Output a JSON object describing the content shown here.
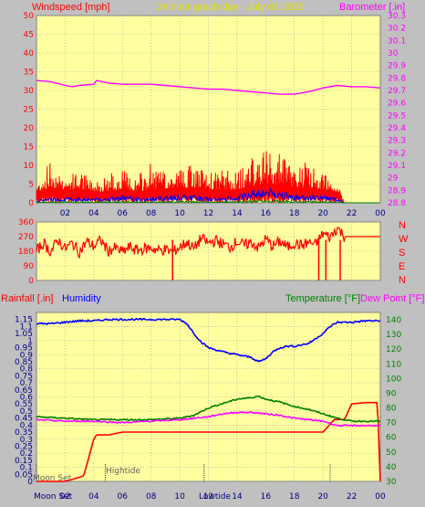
{
  "colors": {
    "background": "#c0c0c0",
    "plot_bg": "#ffffa0",
    "grid": "#a0a0a0",
    "wind": "#ff0000",
    "gust_low": "#0000ff",
    "calm": "#008000",
    "barometer": "#ff00ff",
    "direction": "#ff0000",
    "rainfall": "#ff0000",
    "humidity": "#0000ff",
    "temperature": "#008000",
    "dewpoint": "#ff00ff"
  },
  "header": {
    "wind_label": "Windspeed [mph]",
    "title": "24 hour graph day - July 01 2025",
    "baro_label": "Barometer [.in]"
  },
  "panel_bottom": {
    "rain_label": "Rainfall [.in]",
    "humidity_label": "Humidity",
    "temp_label": "Temperature [°F]",
    "dew_label": "Dew Point [°F]"
  },
  "direction_letters": [
    "N",
    "W",
    "S",
    "E",
    "N"
  ],
  "x_ticks": [
    "02",
    "04",
    "06",
    "08",
    "10",
    "12",
    "14",
    "16",
    "18",
    "20",
    "22",
    "00"
  ],
  "events": {
    "moon_set": "Moon Set",
    "high_tide": "Hightide",
    "low_tide": "Lowtide"
  },
  "chart_data": [
    {
      "type": "line",
      "name": "wind",
      "xlabel": "",
      "ylabel": "Windspeed [mph]",
      "ylim": [
        0,
        50
      ],
      "y_ticks": [
        0,
        5,
        10,
        15,
        20,
        25,
        30,
        35,
        40,
        45,
        50
      ],
      "y2label": "Barometer [.in]",
      "y2lim": [
        28.8,
        30.3
      ],
      "y2_ticks": [
        "28.8",
        "28.9",
        "29",
        "29.1",
        "29.2",
        "29.3",
        "29.4",
        "29.5",
        "29.6",
        "29.7",
        "29.8",
        "29.9",
        "30",
        "30.1",
        "30.2",
        "30.3"
      ],
      "x_hours": [
        0,
        24
      ],
      "barometer": {
        "x": [
          0,
          1,
          2,
          2.5,
          3,
          4,
          4.2,
          5,
          6,
          7,
          8,
          9,
          10,
          11,
          12,
          13,
          14,
          15,
          16,
          17,
          18,
          19,
          20,
          21,
          22,
          23,
          24
        ],
        "values": [
          29.78,
          29.77,
          29.74,
          29.73,
          29.74,
          29.75,
          29.78,
          29.76,
          29.75,
          29.75,
          29.75,
          29.74,
          29.73,
          29.72,
          29.71,
          29.71,
          29.7,
          29.69,
          29.68,
          29.67,
          29.67,
          29.69,
          29.72,
          29.74,
          29.73,
          29.73,
          29.72
        ]
      },
      "wind_envelope": {
        "x": [
          0,
          1,
          2,
          3,
          4,
          5,
          6,
          7,
          8,
          9,
          10,
          11,
          12,
          13,
          14,
          15,
          16,
          17,
          18,
          19,
          20,
          21,
          21.5,
          22,
          23,
          24
        ],
        "gust_max": [
          5,
          12,
          7,
          9,
          6,
          8,
          9,
          7,
          11,
          8,
          10,
          10,
          8,
          9,
          8,
          12,
          14,
          13,
          10,
          11,
          8,
          6,
          0,
          0,
          0,
          0
        ],
        "average": [
          3,
          4,
          3.5,
          3.5,
          3,
          3,
          3.5,
          3,
          3.5,
          3.5,
          4,
          4,
          3.5,
          3.5,
          3.5,
          4.5,
          5,
          5,
          4,
          4,
          3.5,
          3,
          0,
          0,
          0,
          0
        ],
        "low": [
          0.5,
          1,
          1,
          1,
          1,
          1,
          1.5,
          1,
          1,
          1.5,
          1.5,
          1.5,
          1,
          1,
          1.5,
          2.5,
          3,
          2.5,
          1.5,
          1.5,
          1.5,
          1,
          0,
          0,
          0,
          0
        ]
      }
    },
    {
      "type": "line",
      "name": "direction",
      "ylim": [
        0,
        360
      ],
      "y_ticks": [
        0,
        90,
        180,
        270,
        360
      ],
      "x": [
        0,
        0.5,
        1,
        1.5,
        2,
        2.5,
        3,
        3.5,
        4,
        4.5,
        5,
        5.5,
        6,
        6.5,
        7,
        7.5,
        8,
        8.5,
        9,
        9.5,
        10,
        10.5,
        11,
        11.5,
        12,
        12.5,
        13,
        13.5,
        14,
        14.5,
        15,
        15.5,
        16,
        16.5,
        17,
        17.5,
        18,
        18.5,
        19,
        19.5,
        20,
        20.5,
        21,
        21.5,
        22,
        22.5,
        23,
        23.5,
        24
      ],
      "values": [
        180,
        230,
        175,
        250,
        195,
        230,
        175,
        240,
        210,
        250,
        180,
        200,
        175,
        205,
        185,
        195,
        200,
        185,
        190,
        175,
        205,
        235,
        195,
        260,
        230,
        245,
        225,
        205,
        240,
        215,
        235,
        200,
        255,
        210,
        240,
        205,
        230,
        215,
        235,
        220,
        290,
        265,
        325,
        270,
        270,
        270,
        270,
        270,
        270
      ]
    },
    {
      "type": "line",
      "name": "rain_humidity_temperature",
      "ylabel": "Rainfall [.in]",
      "ylim": [
        0,
        1.2
      ],
      "y_ticks": [
        "0",
        "0.05",
        "0.1",
        "0.15",
        "0.2",
        "0.25",
        "0.3",
        "0.35",
        "0.4",
        "0.45",
        "0.5",
        "0.55",
        "0.6",
        "0.65",
        "0.7",
        "0.75",
        "0.8",
        "0.85",
        "0.9",
        "0.95",
        "1",
        "1.05",
        "1.1",
        "1.15"
      ],
      "y_tick_values": [
        0,
        0.05,
        0.1,
        0.15,
        0.2,
        0.25,
        0.3,
        0.35,
        0.4,
        0.45,
        0.5,
        0.55,
        0.6,
        0.65,
        0.7,
        0.75,
        0.8,
        0.85,
        0.9,
        0.95,
        1,
        1.05,
        1.1,
        1.15
      ],
      "y2label": "Temperature [°F]",
      "y2lim": [
        30,
        145
      ],
      "y2_ticks": [
        30,
        40,
        50,
        60,
        70,
        80,
        90,
        100,
        110,
        120,
        130,
        140
      ],
      "series": [
        {
          "name": "Rainfall",
          "x": [
            0,
            2,
            2.7,
            3.3,
            4,
            4.2,
            5,
            6,
            8,
            10,
            12,
            14,
            16,
            18,
            20,
            20.8,
            21.5,
            22,
            23,
            23.8,
            24
          ],
          "values": [
            0,
            0,
            0.02,
            0.04,
            0.3,
            0.33,
            0.33,
            0.35,
            0.35,
            0.35,
            0.35,
            0.35,
            0.35,
            0.35,
            0.35,
            0.44,
            0.44,
            0.55,
            0.56,
            0.56,
            0.0
          ]
        },
        {
          "name": "Humidity",
          "x": [
            0,
            1,
            2,
            3,
            4,
            5,
            6,
            7,
            8,
            9,
            10,
            10.5,
            11,
            11.5,
            12,
            13,
            14,
            15,
            15.5,
            16,
            16.5,
            17,
            17.5,
            18,
            19,
            20,
            20.5,
            21,
            22,
            23,
            24
          ],
          "values": [
            1.12,
            1.12,
            1.13,
            1.14,
            1.14,
            1.15,
            1.15,
            1.15,
            1.15,
            1.15,
            1.15,
            1.12,
            1.05,
            0.99,
            0.95,
            0.92,
            0.9,
            0.88,
            0.85,
            0.87,
            0.92,
            0.95,
            0.96,
            0.96,
            0.98,
            1.05,
            1.1,
            1.13,
            1.13,
            1.14,
            1.14
          ]
        },
        {
          "name": "Temperature",
          "x": [
            0,
            2,
            4,
            6,
            8,
            10,
            11,
            12,
            13,
            14,
            15,
            15.5,
            16,
            16.5,
            17,
            18,
            19,
            20,
            21,
            22,
            23,
            24
          ],
          "values": [
            74,
            73,
            72,
            72,
            72,
            73,
            75,
            80,
            83,
            86,
            87,
            88,
            86,
            85,
            84,
            81,
            79,
            76,
            73,
            71,
            71,
            71
          ]
        },
        {
          "name": "Dew Point",
          "x": [
            0,
            2,
            4,
            6,
            8,
            10,
            12,
            13,
            14,
            15,
            16,
            17,
            18,
            19,
            20,
            21,
            22,
            23,
            24
          ],
          "values": [
            72,
            71,
            71,
            70,
            71,
            72,
            74,
            76,
            77,
            77,
            76,
            75,
            73,
            72,
            71,
            68,
            68,
            68,
            68
          ]
        }
      ],
      "events": [
        {
          "label": "Moon Set",
          "hour": 0.0
        },
        {
          "label": "Hightide",
          "hour": 4.8
        },
        {
          "label": "Lowtide",
          "hour": 11.7
        },
        {
          "label": "",
          "hour": 20.5
        }
      ]
    }
  ]
}
